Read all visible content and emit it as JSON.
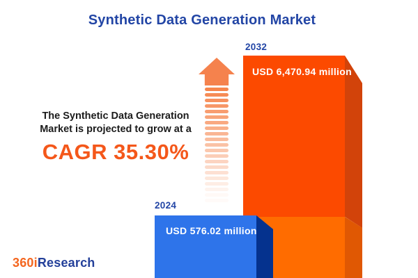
{
  "header": {
    "title": "Synthetic Data Generation Market"
  },
  "growth_note": {
    "line1": "The Synthetic Data Generation",
    "line2": "Market is projected to grow at a",
    "cagr": "CAGR 35.30%"
  },
  "chart_data": {
    "type": "bar",
    "title": "Synthetic Data Generation Market",
    "unit": "USD million",
    "categories": [
      "2024",
      "2032"
    ],
    "values": [
      576.02,
      6470.94
    ],
    "value_labels": [
      "USD 576.02 million",
      "USD 6,470.94 million"
    ],
    "cagr_percent": 35.3,
    "annotation": "The Synthetic Data Generation Market is projected to grow at a CAGR 35.30%",
    "legend": "none",
    "axes": "none",
    "colors": {
      "bar_2024_front": "#2e74ea",
      "bar_2024_side": "#05328e",
      "bar_2032_front_upper": "#fc4a00",
      "bar_2032_front_lower": "#ff6c00",
      "bar_2032_side_upper": "#d2430a",
      "bar_2032_side_lower": "#e05803",
      "arrow": "#f5824d",
      "title_navy": "#2245a5",
      "cagr_orange": "#f4571a"
    }
  },
  "logo": {
    "part1": "360i",
    "part2": "Research"
  }
}
